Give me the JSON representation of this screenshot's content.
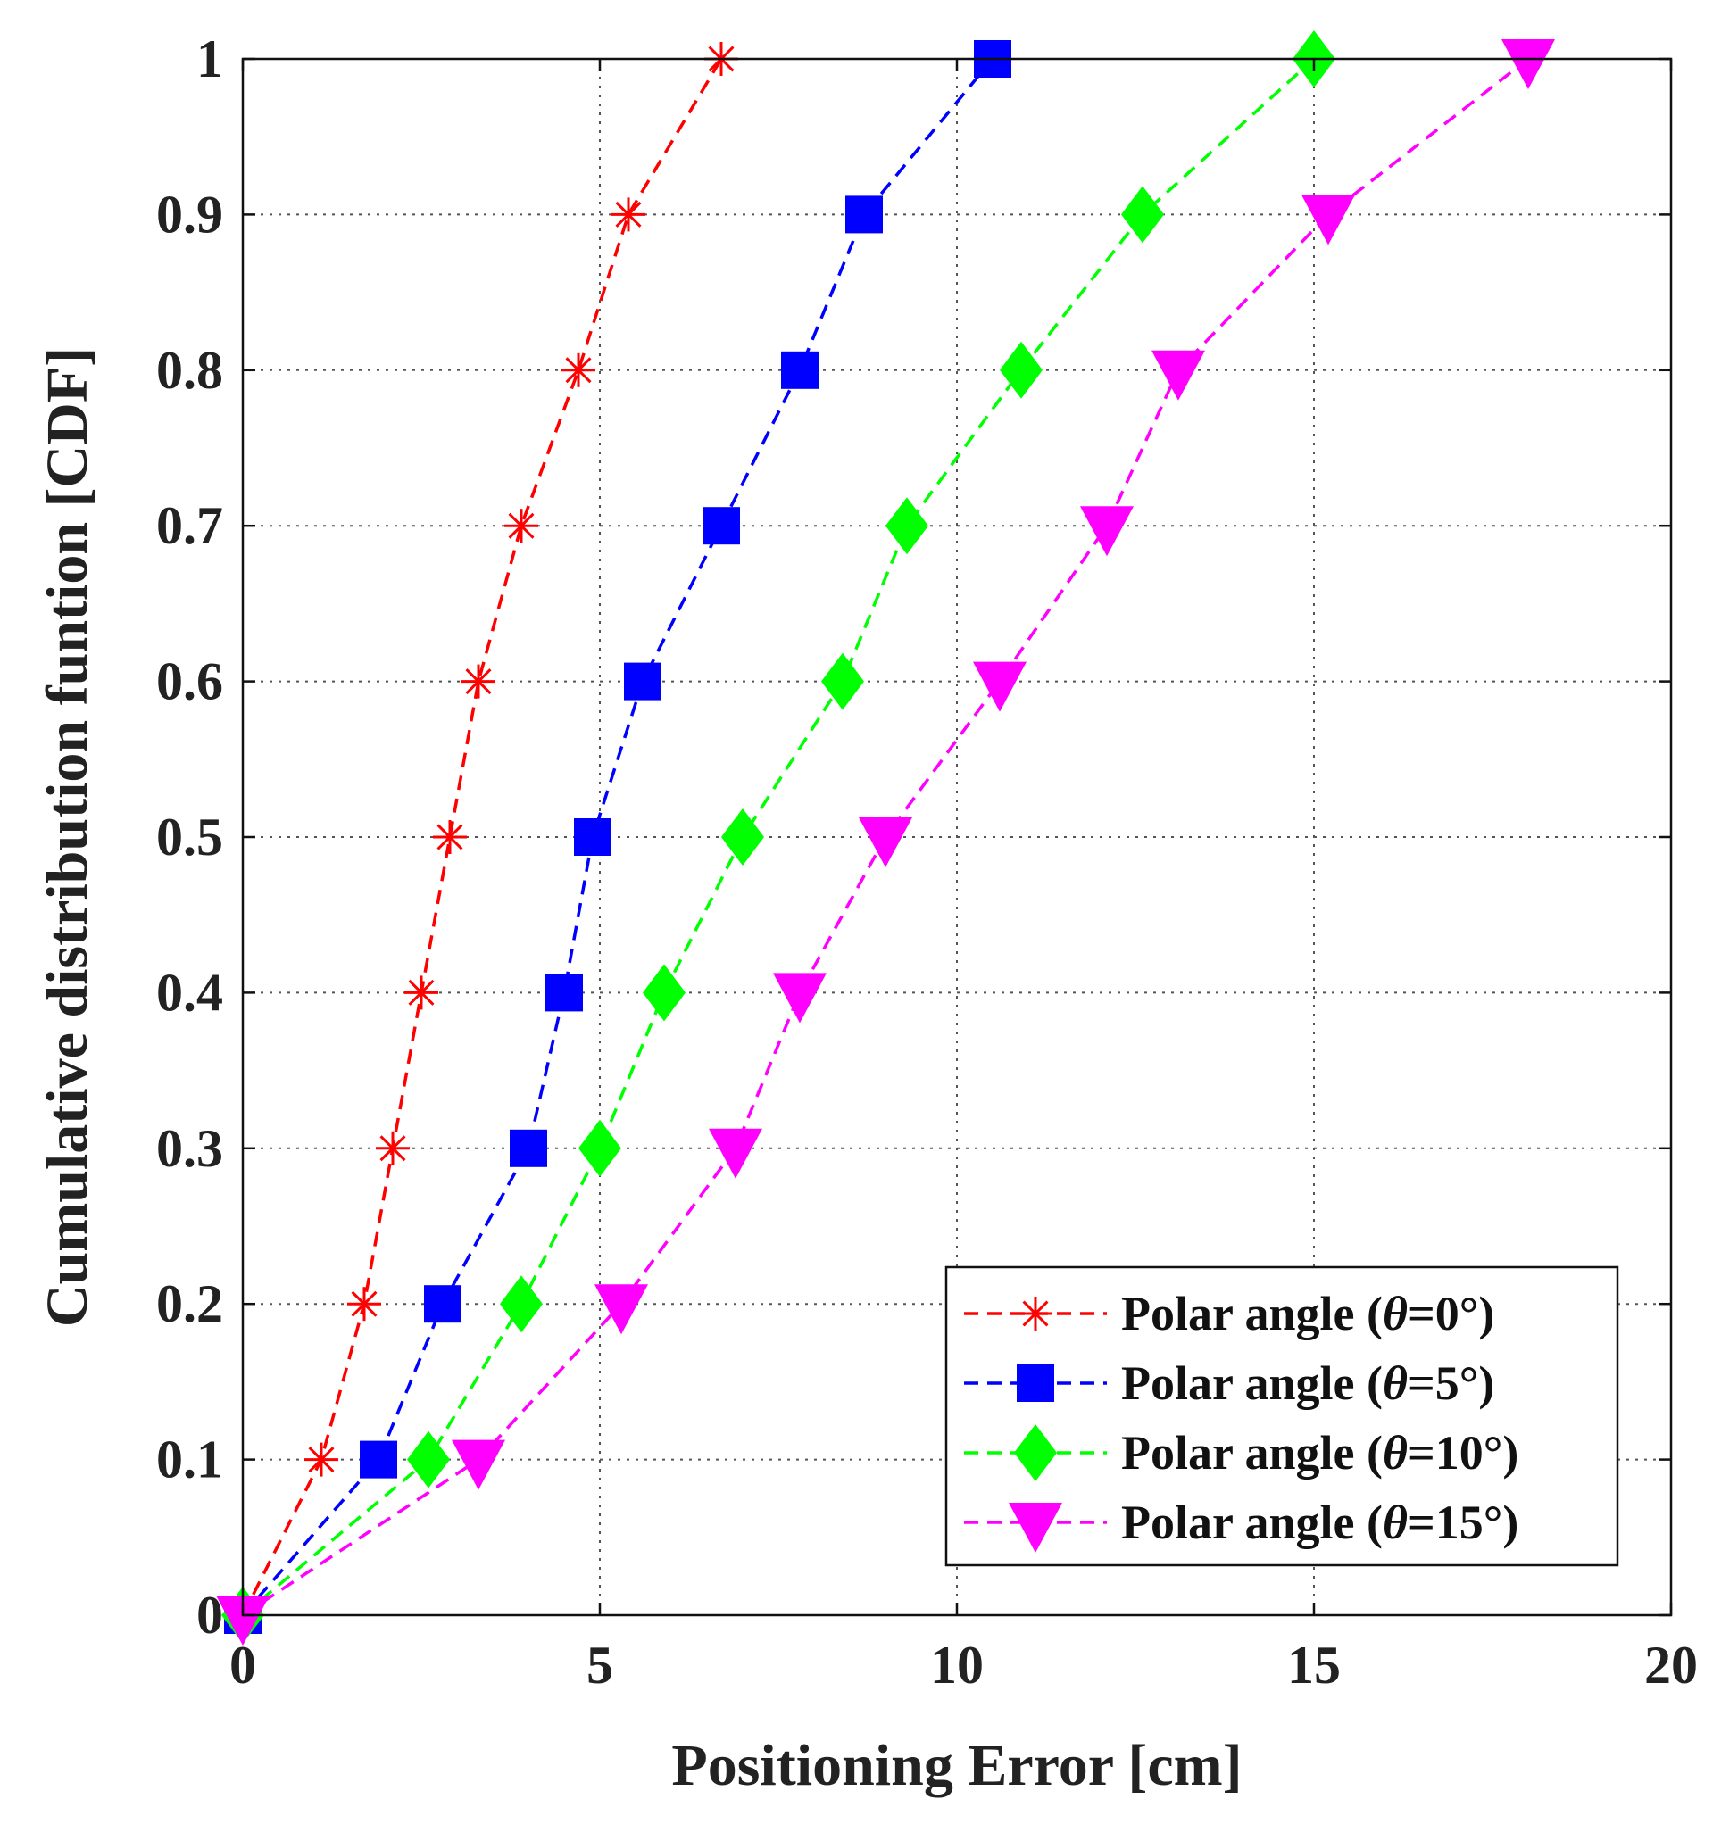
{
  "chart_data": {
    "type": "line",
    "title": "",
    "xlabel": "Positioning Error [cm]",
    "ylabel": "Cumulative distribution funtion [CDF]",
    "xlim": [
      0,
      20
    ],
    "ylim": [
      0,
      1
    ],
    "xticks": [
      0,
      5,
      10,
      15,
      20
    ],
    "yticks": [
      0,
      0.1,
      0.2,
      0.3,
      0.4,
      0.5,
      0.6,
      0.7,
      0.8,
      0.9,
      1
    ],
    "xtick_labels": [
      "0",
      "5",
      "10",
      "15",
      "20"
    ],
    "ytick_labels": [
      "0",
      "0.1",
      "0.2",
      "0.3",
      "0.4",
      "0.5",
      "0.6",
      "0.7",
      "0.8",
      "0.9",
      "1"
    ],
    "grid": true,
    "legend_position": "bottom-right",
    "series": [
      {
        "name": "Polar angle (θ=0°)",
        "label_prefix": "Polar angle (",
        "label_symbol": "θ",
        "label_suffix": "=0°)",
        "color": "#ff0000",
        "marker": "asterisk",
        "x": [
          0,
          1.1,
          1.7,
          2.1,
          2.5,
          2.9,
          3.3,
          3.9,
          4.7,
          5.4,
          6.7
        ],
        "y": [
          0,
          0.1,
          0.2,
          0.3,
          0.4,
          0.5,
          0.6,
          0.7,
          0.8,
          0.9,
          1.0
        ]
      },
      {
        "name": "Polar angle (θ=5°)",
        "label_prefix": "Polar angle (",
        "label_symbol": "θ",
        "label_suffix": "=5°)",
        "color": "#0000ff",
        "marker": "square",
        "x": [
          0,
          1.9,
          2.8,
          4.0,
          4.5,
          4.9,
          5.6,
          6.7,
          7.8,
          8.7,
          10.5
        ],
        "y": [
          0,
          0.1,
          0.2,
          0.3,
          0.4,
          0.5,
          0.6,
          0.7,
          0.8,
          0.9,
          1.0
        ]
      },
      {
        "name": "Polar angle (θ=10°)",
        "label_prefix": "Polar angle (",
        "label_symbol": "θ",
        "label_suffix": "=10°)",
        "color": "#00ff00",
        "marker": "diamond",
        "x": [
          0,
          2.6,
          3.9,
          5.0,
          5.9,
          7.0,
          8.4,
          9.3,
          10.9,
          12.6,
          15.0
        ],
        "y": [
          0,
          0.1,
          0.2,
          0.3,
          0.4,
          0.5,
          0.6,
          0.7,
          0.8,
          0.9,
          1.0
        ]
      },
      {
        "name": "Polar angle (θ=15°)",
        "label_prefix": "Polar angle (",
        "label_symbol": "θ",
        "label_suffix": "=15°)",
        "color": "#ff00ff",
        "marker": "triangle-down",
        "x": [
          0,
          3.3,
          5.3,
          6.9,
          7.8,
          9.0,
          10.6,
          12.1,
          13.1,
          15.2,
          18.0
        ],
        "y": [
          0,
          0.1,
          0.2,
          0.3,
          0.4,
          0.5,
          0.6,
          0.7,
          0.8,
          0.9,
          1.0
        ]
      }
    ]
  }
}
